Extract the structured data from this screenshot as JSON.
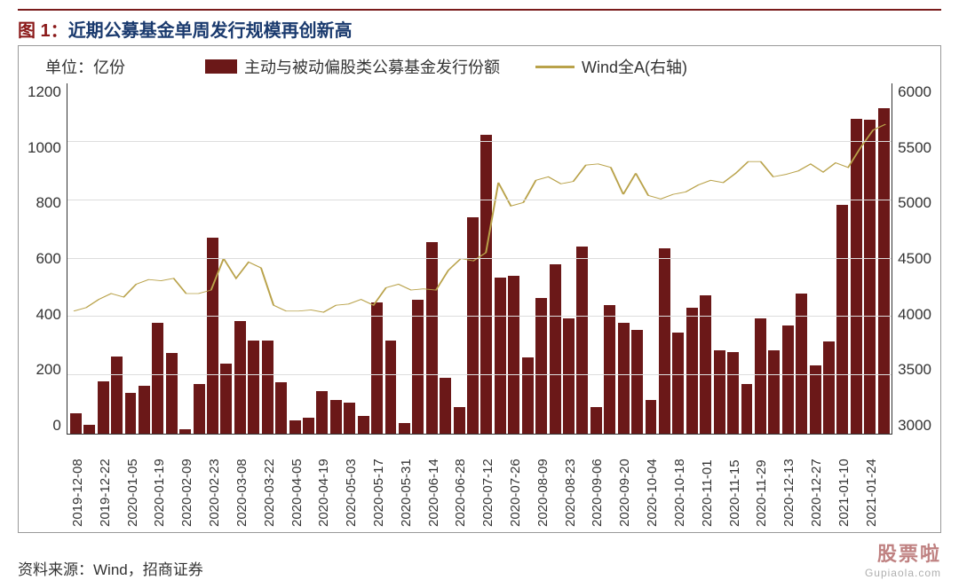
{
  "title_prefix": "图 1：",
  "title_text": "近期公募基金单周发行规模再创新高",
  "unit_label": "单位：亿份",
  "legend": {
    "bar": "主动与被动偏股类公募基金发行份额",
    "line": "Wind全A(右轴)"
  },
  "source": "资料来源：Wind，招商证券",
  "watermark": {
    "main": "股票啦",
    "sub": "Gupiaola.com"
  },
  "chart": {
    "type": "bar+line",
    "bar_color": "#6b1818",
    "line_color": "#b9a24a",
    "background_color": "#ffffff",
    "grid_color": "#dddddd",
    "axis_color": "#333333",
    "title_fontsize": 20,
    "label_fontsize": 18,
    "tick_fontsize": 17,
    "xtick_fontsize": 15,
    "y_left": {
      "min": 0,
      "max": 1200,
      "step": 200,
      "ticks": [
        0,
        200,
        400,
        600,
        800,
        1000,
        1200
      ]
    },
    "y_right": {
      "min": 3000,
      "max": 6000,
      "step": 500,
      "ticks": [
        3000,
        3500,
        4000,
        4500,
        5000,
        5500,
        6000
      ]
    },
    "categories": [
      "2019-12-08",
      "2019-12-22",
      "2020-01-05",
      "2020-01-19",
      "2020-02-09",
      "2020-02-23",
      "2020-03-08",
      "2020-03-22",
      "2020-04-05",
      "2020-04-19",
      "2020-05-03",
      "2020-05-17",
      "2020-05-31",
      "2020-06-14",
      "2020-06-28",
      "2020-07-12",
      "2020-07-26",
      "2020-08-09",
      "2020-08-23",
      "2020-09-06",
      "2020-09-20",
      "2020-10-04",
      "2020-10-18",
      "2020-11-01",
      "2020-11-15",
      "2020-11-29",
      "2020-12-13",
      "2020-12-27",
      "2021-01-10",
      "2021-01-24"
    ],
    "bar_values": [
      70,
      30,
      180,
      265,
      140,
      165,
      380,
      275,
      15,
      170,
      670,
      240,
      385,
      320,
      320,
      175,
      45,
      55,
      145,
      115,
      105,
      60,
      450,
      320,
      35,
      460,
      655,
      190,
      90,
      740,
      1025,
      535,
      540,
      260,
      465,
      580,
      395,
      640,
      90,
      440,
      380,
      355,
      115,
      635,
      345,
      430,
      475,
      285,
      280,
      170,
      395,
      285,
      370,
      480,
      235,
      315,
      785,
      1080,
      1075,
      1115
    ],
    "line_values": [
      4050,
      4080,
      4150,
      4200,
      4170,
      4280,
      4320,
      4310,
      4330,
      4200,
      4200,
      4230,
      4500,
      4330,
      4470,
      4420,
      4100,
      4050,
      4050,
      4060,
      4040,
      4100,
      4110,
      4150,
      4100,
      4250,
      4280,
      4230,
      4240,
      4230,
      4400,
      4500,
      4480,
      4550,
      5150,
      4950,
      4980,
      5170,
      5200,
      5140,
      5160,
      5300,
      5310,
      5280,
      5050,
      5230,
      5040,
      5010,
      5050,
      5070,
      5130,
      5170,
      5150,
      5230,
      5330,
      5330,
      5200,
      5220,
      5250,
      5310,
      5240,
      5320,
      5280,
      5450,
      5600,
      5650
    ],
    "bar_width_ratio": 0.72
  }
}
